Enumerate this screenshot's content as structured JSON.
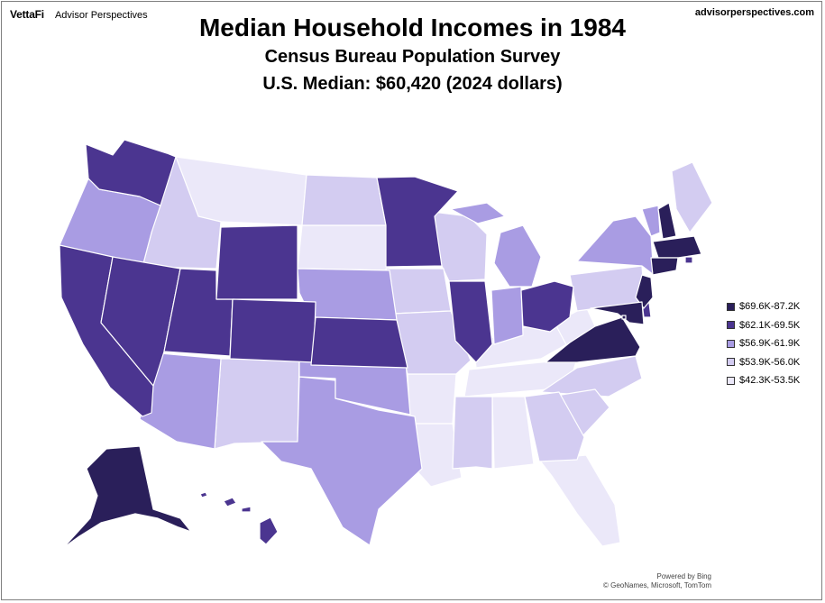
{
  "header": {
    "brand_logo": "VettaFi",
    "brand_name": "Advisor Perspectives",
    "site": "advisorperspectives.com"
  },
  "titles": {
    "title": "Median Household Incomes in 1984",
    "subtitle1": "Census Bureau Population Survey",
    "subtitle2": "U.S. Median: $60,420 (2024 dollars)"
  },
  "legend": [
    {
      "label": "$69.6K-87.2K",
      "color": "#2a1f5a"
    },
    {
      "label": "$62.1K-69.5K",
      "color": "#4b3590"
    },
    {
      "label": "$56.9K-61.9K",
      "color": "#a99ce3"
    },
    {
      "label": "$53.9K-56.0K",
      "color": "#d3ccf1"
    },
    {
      "label": "$42.3K-53.5K",
      "color": "#ebe8f9"
    }
  ],
  "states": {
    "tier1": [
      "NH",
      "MA",
      "CT",
      "NJ",
      "MD",
      "VA",
      "AK",
      "DC"
    ],
    "tier2": [
      "WA",
      "CA",
      "NV",
      "UT",
      "WY",
      "CO",
      "KS",
      "MN",
      "IL",
      "OH",
      "HI",
      "DE",
      "RI"
    ],
    "tier3": [
      "OR",
      "AZ",
      "TX",
      "OK",
      "NE",
      "MI",
      "IN",
      "NY",
      "VT"
    ],
    "tier4": [
      "ID",
      "ND",
      "WI",
      "IA",
      "MO",
      "NM",
      "NC",
      "SC",
      "GA",
      "MS",
      "ME",
      "PA"
    ],
    "tier5": [
      "MT",
      "SD",
      "AR",
      "LA",
      "AL",
      "TN",
      "KY",
      "WV",
      "FL"
    ]
  },
  "credits": {
    "line1": "Powered by Bing",
    "line2": "© GeoNames, Microsoft, TomTom"
  }
}
